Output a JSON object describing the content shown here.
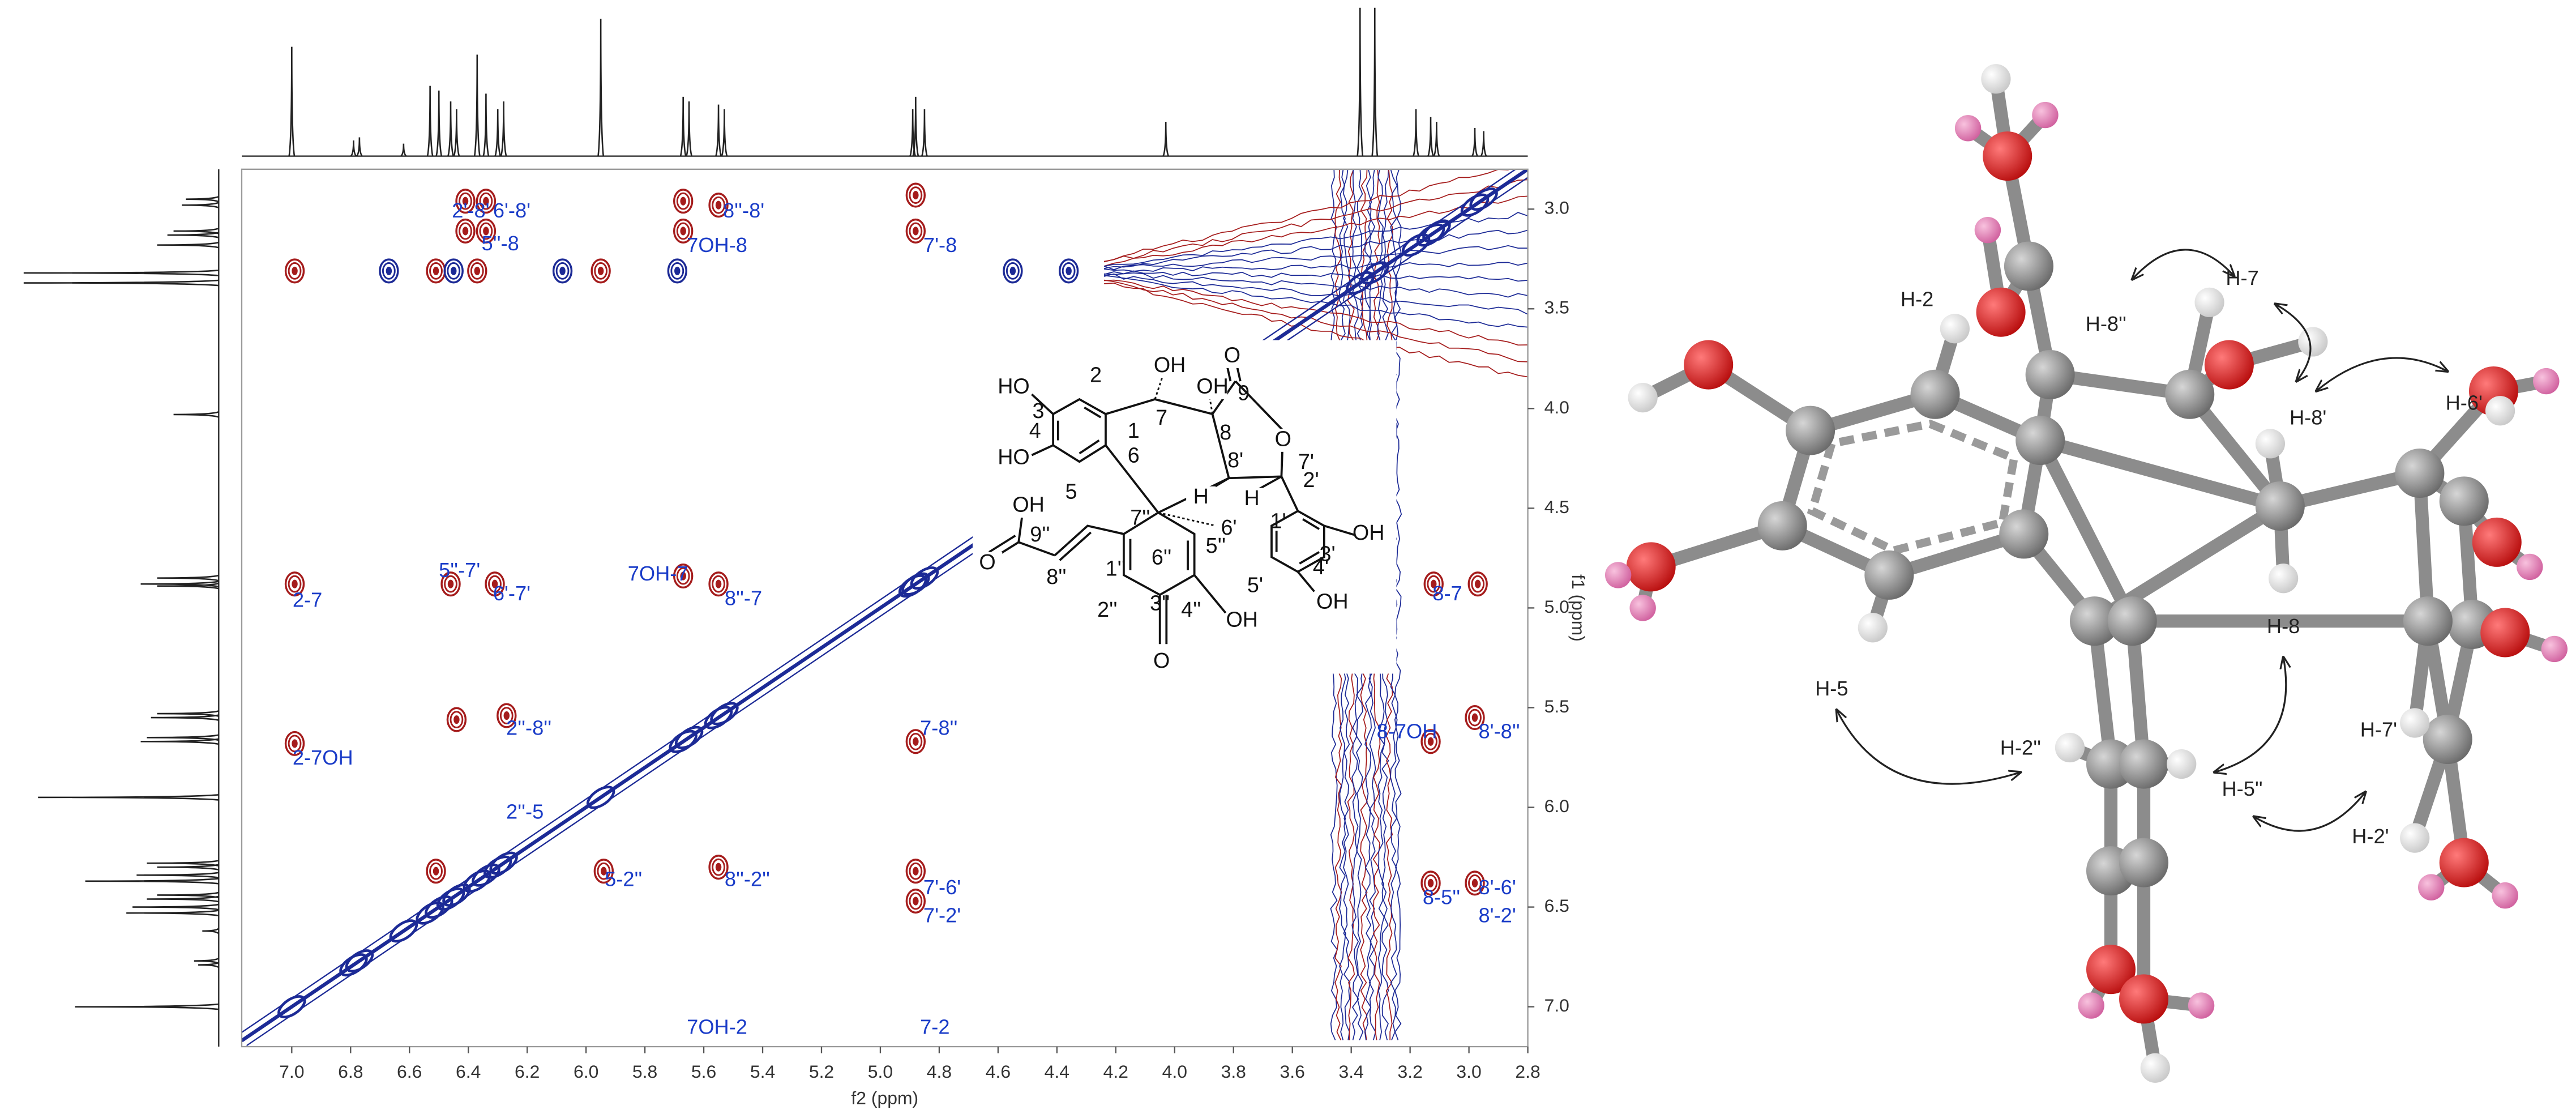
{
  "chart_data": {
    "type": "contour",
    "x_label": "f2 (ppm)",
    "y_label": "f1 (ppm)",
    "xlim": [
      7.17,
      2.8
    ],
    "ylim": [
      2.8,
      7.2
    ],
    "xticks": [
      {
        "value": 7,
        "label": "7.0"
      },
      6.8,
      6.6,
      6.4,
      6.2,
      {
        "value": 6,
        "label": "6.0"
      },
      5.8,
      5.6,
      5.4,
      5.2,
      {
        "value": 5,
        "label": "5.0"
      },
      4.8,
      4.6,
      4.4,
      4.2,
      {
        "value": 4,
        "label": "4.0"
      },
      3.8,
      3.6,
      3.4,
      3.2,
      {
        "value": 3,
        "label": "3.0"
      },
      2.8
    ],
    "yticks": [
      {
        "value": 3,
        "label": "3.0"
      },
      3.5,
      {
        "value": 4,
        "label": "4.0"
      },
      4.5,
      {
        "value": 5,
        "label": "5.0"
      },
      5.5,
      {
        "value": 6,
        "label": "6.0"
      },
      6.5,
      {
        "value": 7,
        "label": "7.0"
      }
    ],
    "series": [
      {
        "color": "#a51c1c",
        "x": [
          6.99,
          6.41,
          6.41,
          6.34,
          6.34,
          5.67,
          5.67,
          5.55,
          4.88,
          4.88,
          6.51,
          6.37,
          5.95,
          6.99,
          6.46,
          6.31,
          5.67,
          5.55,
          3.12,
          2.97,
          6.99,
          6.44,
          6.27,
          4.88,
          3.13,
          2.98,
          6.51,
          5.55,
          4.88,
          4.88,
          5.94,
          3.13,
          2.98
        ],
        "y": [
          3.31,
          2.96,
          3.11,
          2.96,
          3.11,
          2.96,
          3.11,
          2.98,
          2.93,
          3.11,
          3.31,
          3.31,
          3.31,
          4.88,
          4.88,
          4.88,
          4.84,
          4.88,
          4.88,
          4.88,
          5.68,
          5.56,
          5.54,
          5.67,
          5.67,
          5.55,
          6.32,
          6.3,
          6.32,
          6.47,
          6.32,
          6.38,
          6.38
        ]
      },
      {
        "color": "#1c2a96",
        "x": [
          6.45,
          6.67,
          6.08,
          5.69,
          4.55,
          4.36
        ],
        "y": [
          3.31,
          3.31,
          3.31,
          3.31,
          3.31,
          3.31
        ]
      }
    ],
    "projection": {
      "color": "#222222",
      "x": [
        7.0,
        6.79,
        6.77,
        6.62,
        6.53,
        6.5,
        6.46,
        6.44,
        6.37,
        6.34,
        6.3,
        6.28,
        5.95,
        5.67,
        5.65,
        5.55,
        5.53,
        4.89,
        4.88,
        4.85,
        4.03,
        3.37,
        3.32,
        3.18,
        3.13,
        3.11,
        2.98,
        2.95
      ],
      "heights": [
        70,
        10,
        12,
        8,
        45,
        42,
        35,
        30,
        65,
        40,
        30,
        35,
        88,
        38,
        35,
        33,
        30,
        30,
        38,
        30,
        22,
        95,
        95,
        30,
        25,
        22,
        18,
        16
      ]
    },
    "annotation_color": "#1a3cc8",
    "annotations": [
      "2'-8'",
      "6'-8'",
      "5''-8",
      "8''-8'",
      "7OH-8",
      "7'-8",
      "5''-7'",
      "6'-7'",
      "7OH-7",
      "8''-7",
      "2-7",
      "8-7",
      "2''-8''",
      "7-8''",
      "8-7OH",
      "8'-8''",
      "2-7OH",
      "2''-5",
      "5-2''",
      "8''-2''",
      "7'-6'",
      "7'-2'",
      "8-5''",
      "8'-6'",
      "8'-2'",
      "7OH-2",
      "7-2"
    ]
  },
  "structure": {
    "labels": [
      "HO",
      "2",
      "OH",
      "O",
      "3",
      "OH",
      "9",
      "7",
      "8",
      "4",
      "1",
      "O",
      "HO",
      "6",
      "8'",
      "7'",
      "5",
      "H",
      "H",
      "2'",
      "OH",
      "7''",
      "1'",
      "6'",
      "9''",
      "6''",
      "5''",
      "OH",
      "3'",
      "O",
      "1''",
      "8''",
      "4'",
      "5'",
      "2''",
      "3''",
      "4''",
      "OH",
      "OH",
      "O"
    ]
  },
  "model": {
    "labels": [
      "H-2",
      "H-8''",
      "H-7",
      "H-6'",
      "H-8'",
      "H-8",
      "H-5",
      "H-2''",
      "H-5''",
      "H-7'",
      "H-2'"
    ]
  }
}
